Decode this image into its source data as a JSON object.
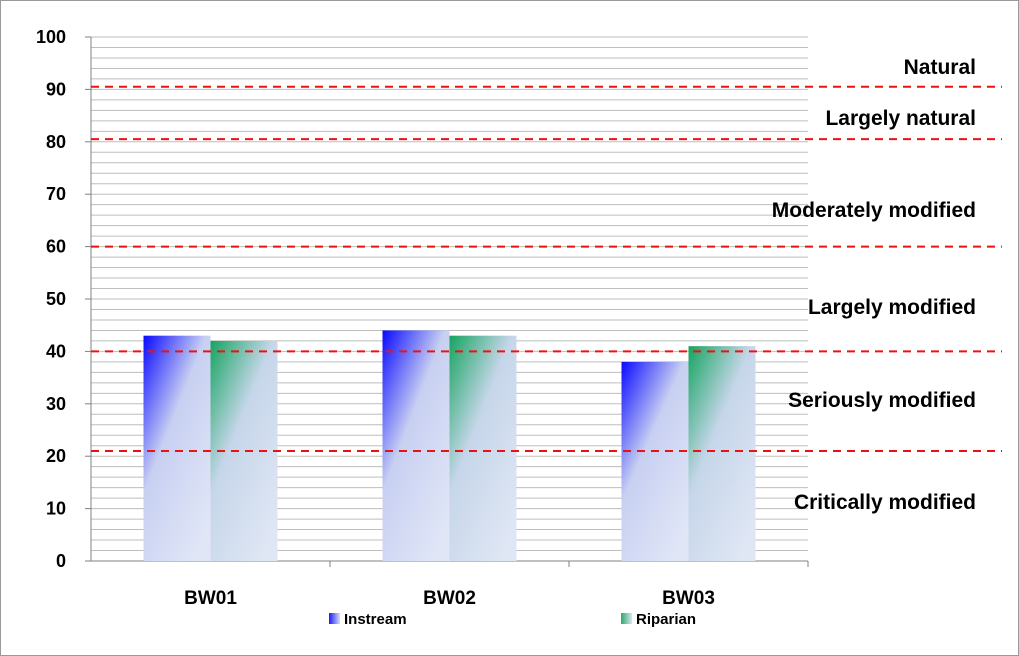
{
  "chart_data": {
    "type": "bar",
    "categories": [
      "BW01",
      "BW02",
      "BW03"
    ],
    "series": [
      {
        "name": "Instream",
        "values": [
          43,
          44,
          38
        ],
        "color": "#1a1aff"
      },
      {
        "name": "Riparian",
        "values": [
          42,
          43,
          41
        ],
        "color": "#2daa6a"
      }
    ],
    "ylim": [
      0,
      100
    ],
    "y_ticks": [
      0,
      10,
      20,
      30,
      40,
      50,
      60,
      70,
      80,
      90,
      100
    ],
    "grid": true,
    "minor_grid_step": 2,
    "legend_position": "bottom",
    "threshold_lines": [
      {
        "value": 21,
        "color": "#ee1111"
      },
      {
        "value": 40,
        "color": "#ee1111"
      },
      {
        "value": 60,
        "color": "#ee1111"
      },
      {
        "value": 80.5,
        "color": "#ee1111"
      },
      {
        "value": 90.5,
        "color": "#ee1111"
      }
    ],
    "band_labels": [
      "Natural",
      "Largely natural",
      "Moderately modified",
      "Largely modified",
      "Seriously modified",
      "Critically modified"
    ]
  }
}
